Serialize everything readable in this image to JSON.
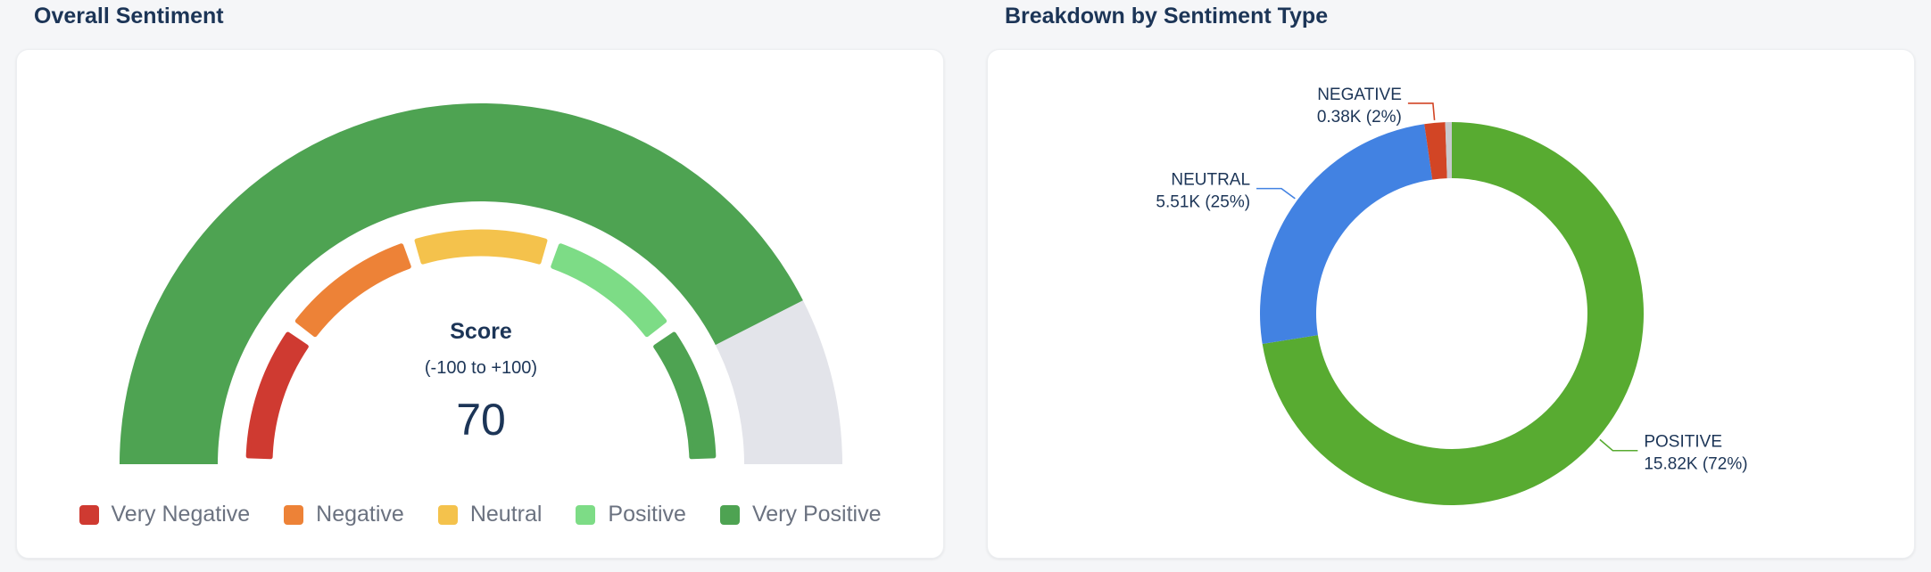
{
  "chart_data": [
    {
      "type": "gauge",
      "title": "Overall Sentiment",
      "score_label": "Score",
      "range_label": "(-100 to +100)",
      "min": -100,
      "max": 100,
      "value": 70,
      "value_label": "70",
      "colors": {
        "fill": "#4ea352",
        "track": "#e3e4ea"
      },
      "bands": [
        {
          "name": "Very Negative",
          "color": "#cf3a31"
        },
        {
          "name": "Negative",
          "color": "#ed8237"
        },
        {
          "name": "Neutral",
          "color": "#f4c24c"
        },
        {
          "name": "Positive",
          "color": "#7ddc86"
        },
        {
          "name": "Very Positive",
          "color": "#4ea352"
        }
      ],
      "legend_placement": "bottom"
    },
    {
      "type": "pie",
      "title": "Breakdown by Sentiment Type",
      "slices": [
        {
          "name": "POSITIVE",
          "value_label": "15.82K (72%)",
          "value": 15.82,
          "color": "#58ab31"
        },
        {
          "name": "NEUTRAL",
          "value_label": "5.51K (25%)",
          "value": 5.51,
          "color": "#4282e2"
        },
        {
          "name": "NEGATIVE",
          "value_label": "0.38K (2%)",
          "value": 0.38,
          "color": "#d24525"
        },
        {
          "name": "",
          "value_label": "",
          "value": 0.12,
          "color": "#c8c9cd"
        }
      ]
    }
  ]
}
